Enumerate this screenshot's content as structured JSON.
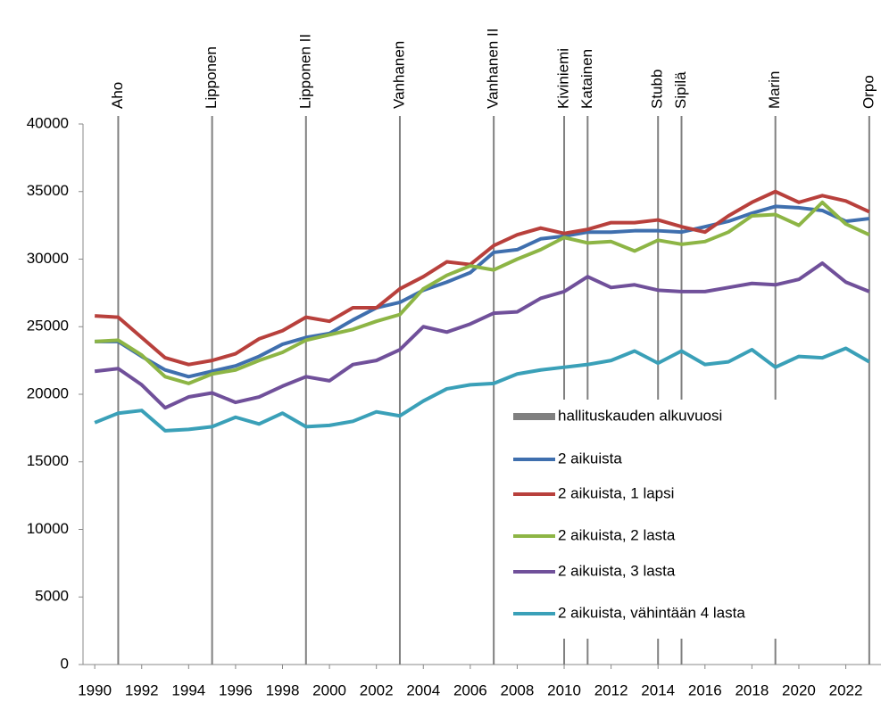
{
  "chart_data": {
    "type": "line",
    "x": [
      1990,
      1991,
      1992,
      1993,
      1994,
      1995,
      1996,
      1997,
      1998,
      1999,
      2000,
      2001,
      2002,
      2003,
      2004,
      2005,
      2006,
      2007,
      2008,
      2009,
      2010,
      2011,
      2012,
      2013,
      2014,
      2015,
      2016,
      2017,
      2018,
      2019,
      2020,
      2021,
      2022,
      2023
    ],
    "xlim": [
      1989.5,
      2023.5
    ],
    "xticks": [
      1990,
      1992,
      1994,
      1996,
      1998,
      2000,
      2002,
      2004,
      2006,
      2008,
      2010,
      2012,
      2014,
      2016,
      2018,
      2020,
      2022
    ],
    "ylim": [
      0,
      40000
    ],
    "yticks": [
      0,
      5000,
      10000,
      15000,
      20000,
      25000,
      30000,
      35000,
      40000
    ],
    "governments": {
      "name": "hallituskauden alkuvuosi",
      "color": "#808080",
      "x": [
        1991,
        1995,
        1999,
        2003,
        2007,
        2010,
        2011,
        2014,
        2015,
        2019,
        2023
      ],
      "labels": [
        "Aho",
        "Lipponen",
        "Lipponen II",
        "Vanhanen",
        "Vanhanen II",
        "Kiviniemi",
        "Katainen",
        "Stubb",
        "Sipilä",
        "Marin",
        "Orpo"
      ]
    },
    "series": [
      {
        "name": "2 aikuista",
        "color": "#3f6fae",
        "values": [
          23900,
          23900,
          22800,
          21800,
          21300,
          21700,
          22100,
          22800,
          23700,
          24200,
          24500,
          25500,
          26400,
          26800,
          27700,
          28300,
          29000,
          30500,
          30700,
          31500,
          31700,
          32000,
          32000,
          32100,
          32100,
          32000,
          32400,
          32800,
          33400,
          33900,
          33800,
          33600,
          32800,
          33000
        ]
      },
      {
        "name": "2 aikuista, 1 lapsi",
        "color": "#b8403c",
        "values": [
          25800,
          25700,
          24200,
          22700,
          22200,
          22500,
          23000,
          24100,
          24700,
          25700,
          25400,
          26400,
          26400,
          27800,
          28700,
          29800,
          29600,
          31000,
          31800,
          32300,
          31900,
          32200,
          32700,
          32700,
          32900,
          32400,
          32000,
          33200,
          34200,
          35000,
          34200,
          34700,
          34300,
          33500
        ]
      },
      {
        "name": "2 aikuista, 2 lasta",
        "color": "#8db545",
        "values": [
          23900,
          24000,
          22900,
          21300,
          20800,
          21500,
          21800,
          22500,
          23100,
          24000,
          24400,
          24800,
          25400,
          25900,
          27800,
          28800,
          29500,
          29200,
          30000,
          30700,
          31600,
          31200,
          31300,
          30600,
          31400,
          31100,
          31300,
          32000,
          33200,
          33300,
          32500,
          34200,
          32600,
          31800
        ]
      },
      {
        "name": "2 aikuista, 3 lasta",
        "color": "#70509a",
        "values": [
          21700,
          21900,
          20700,
          19000,
          19800,
          20100,
          19400,
          19800,
          20600,
          21300,
          21000,
          22200,
          22500,
          23300,
          25000,
          24600,
          25200,
          26000,
          26100,
          27100,
          27600,
          28700,
          27900,
          28100,
          27700,
          27600,
          27600,
          27900,
          28200,
          28100,
          28500,
          29700,
          28300,
          27600
        ]
      },
      {
        "name": "2 aikuista, vähintään 4 lasta",
        "color": "#3aa0b8",
        "values": [
          17900,
          18600,
          18800,
          17300,
          17400,
          17600,
          18300,
          17800,
          18600,
          17600,
          17700,
          18000,
          18700,
          18400,
          19500,
          20400,
          20700,
          20800,
          21500,
          21800,
          22000,
          22200,
          22500,
          23200,
          22300,
          23200,
          22200,
          22400,
          23300,
          22000,
          22800,
          22700,
          23400,
          22400
        ]
      }
    ]
  }
}
